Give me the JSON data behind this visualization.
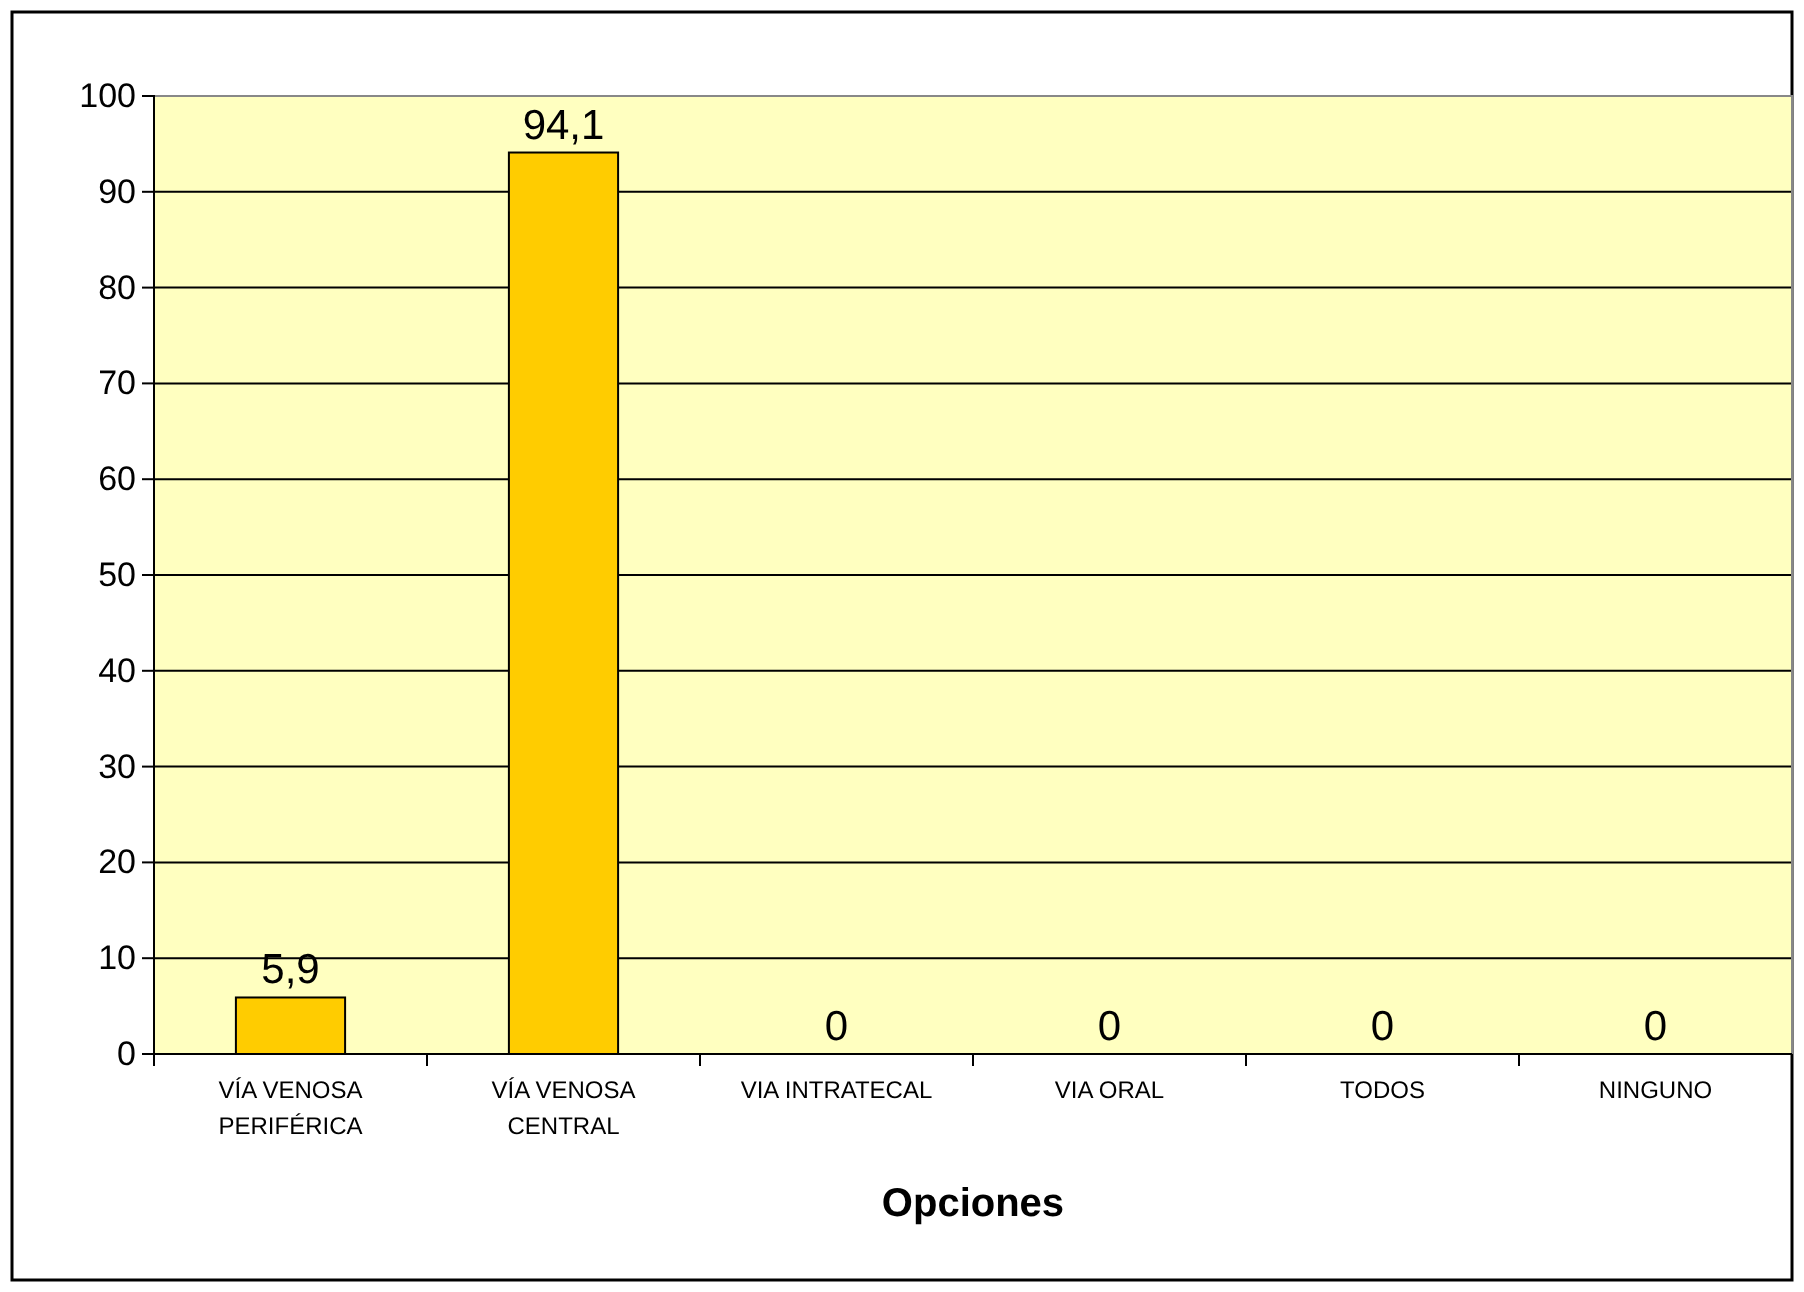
{
  "chart_data": {
    "type": "bar",
    "xlabel": "Opciones",
    "categories": [
      "VÍA VENOSA PERIFÉRICA",
      "VÍA VENOSA CENTRAL",
      "VIA INTRATECAL",
      "VIA ORAL",
      "TODOS",
      "NINGUNO"
    ],
    "values": [
      5.9,
      94.1,
      0,
      0,
      0,
      0
    ],
    "value_labels": [
      "5,9",
      "94,1",
      "0",
      "0",
      "0",
      "0"
    ],
    "color": "#ffcc00",
    "ylim": [
      0,
      100
    ],
    "yticks": [
      0,
      10,
      20,
      30,
      40,
      50,
      60,
      70,
      80,
      90,
      100
    ],
    "grid": "y"
  }
}
